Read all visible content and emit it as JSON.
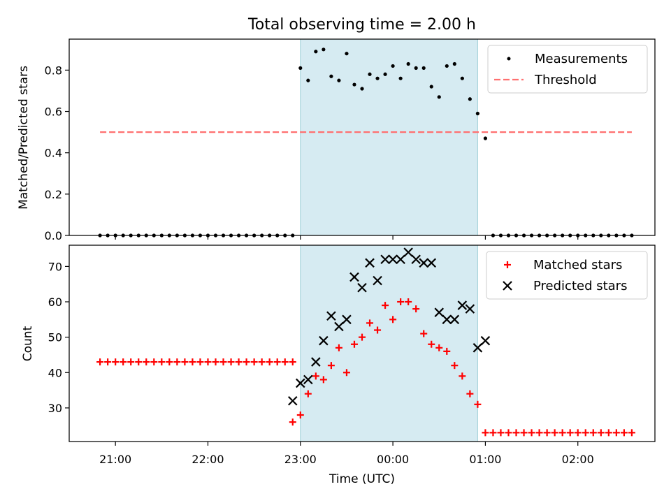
{
  "figure_title": "Total observing time = 2.00 h",
  "x_axis": {
    "label": "Time (UTC)",
    "ticks": [
      "21:00",
      "22:00",
      "23:00",
      "00:00",
      "01:00",
      "02:00"
    ],
    "range": [
      "20:30",
      "02:50"
    ]
  },
  "observing_window": {
    "start": "23:00",
    "end": "00:55",
    "color": "#add8e6"
  },
  "chart_data": [
    {
      "type": "scatter",
      "ylabel": "Matched/Predicted stars",
      "ylim": [
        0,
        0.95
      ],
      "yticks": [
        "0.0",
        "0.2",
        "0.4",
        "0.6",
        "0.8"
      ],
      "legend_position": "top-right",
      "series": [
        {
          "name": "Measurements",
          "marker": "dot",
          "color": "#000000",
          "x": [
            "20:50",
            "20:55",
            "21:00",
            "21:05",
            "21:10",
            "21:15",
            "21:20",
            "21:25",
            "21:30",
            "21:35",
            "21:40",
            "21:45",
            "21:50",
            "21:55",
            "22:00",
            "22:05",
            "22:10",
            "22:15",
            "22:20",
            "22:25",
            "22:30",
            "22:35",
            "22:40",
            "22:45",
            "22:50",
            "22:55",
            "23:00",
            "23:05",
            "23:10",
            "23:15",
            "23:20",
            "23:25",
            "23:30",
            "23:35",
            "23:40",
            "23:45",
            "23:50",
            "23:55",
            "00:00",
            "00:05",
            "00:10",
            "00:15",
            "00:20",
            "00:25",
            "00:30",
            "00:35",
            "00:40",
            "00:45",
            "00:50",
            "00:55",
            "01:00",
            "01:05",
            "01:10",
            "01:15",
            "01:20",
            "01:25",
            "01:30",
            "01:35",
            "01:40",
            "01:45",
            "01:50",
            "01:55",
            "02:00",
            "02:05",
            "02:10",
            "02:15",
            "02:20",
            "02:25",
            "02:30",
            "02:35"
          ],
          "y": [
            0,
            0,
            0,
            0,
            0,
            0,
            0,
            0,
            0,
            0,
            0,
            0,
            0,
            0,
            0,
            0,
            0,
            0,
            0,
            0,
            0,
            0,
            0,
            0,
            0,
            0,
            0.81,
            0.75,
            0.89,
            0.9,
            0.77,
            0.75,
            0.88,
            0.73,
            0.71,
            0.78,
            0.76,
            0.78,
            0.82,
            0.76,
            0.83,
            0.81,
            0.81,
            0.72,
            0.67,
            0.82,
            0.83,
            0.76,
            0.66,
            0.59,
            0.47,
            0,
            0,
            0,
            0,
            0,
            0,
            0,
            0,
            0,
            0,
            0,
            0,
            0,
            0,
            0,
            0,
            0,
            0,
            0
          ]
        },
        {
          "name": "Threshold",
          "marker": "dashed-line",
          "color": "#ff7070",
          "x": [
            "20:50",
            "02:35"
          ],
          "y": [
            0.5,
            0.5
          ]
        }
      ]
    },
    {
      "type": "scatter",
      "xlabel": "Time (UTC)",
      "ylabel": "Count",
      "ylim": [
        20.5,
        76
      ],
      "yticks": [
        "30",
        "40",
        "50",
        "60",
        "70"
      ],
      "legend_position": "top-right",
      "series": [
        {
          "name": "Matched stars",
          "marker": "plus",
          "color": "#ff0000",
          "x": [
            "20:50",
            "20:55",
            "21:00",
            "21:05",
            "21:10",
            "21:15",
            "21:20",
            "21:25",
            "21:30",
            "21:35",
            "21:40",
            "21:45",
            "21:50",
            "21:55",
            "22:00",
            "22:05",
            "22:10",
            "22:15",
            "22:20",
            "22:25",
            "22:30",
            "22:35",
            "22:40",
            "22:45",
            "22:50",
            "22:55",
            "22:55",
            "23:00",
            "23:05",
            "23:10",
            "23:15",
            "23:20",
            "23:25",
            "23:30",
            "23:35",
            "23:40",
            "23:45",
            "23:50",
            "23:55",
            "00:00",
            "00:05",
            "00:10",
            "00:15",
            "00:20",
            "00:25",
            "00:30",
            "00:35",
            "00:40",
            "00:45",
            "00:50",
            "00:55",
            "01:00",
            "01:05",
            "01:10",
            "01:15",
            "01:20",
            "01:25",
            "01:30",
            "01:35",
            "01:40",
            "01:45",
            "01:50",
            "01:55",
            "02:00",
            "02:05",
            "02:10",
            "02:15",
            "02:20",
            "02:25",
            "02:30",
            "02:35"
          ],
          "y": [
            43,
            43,
            43,
            43,
            43,
            43,
            43,
            43,
            43,
            43,
            43,
            43,
            43,
            43,
            43,
            43,
            43,
            43,
            43,
            43,
            43,
            43,
            43,
            43,
            43,
            43,
            26,
            28,
            34,
            39,
            38,
            42,
            47,
            40,
            48,
            50,
            54,
            52,
            59,
            55,
            60,
            60,
            58,
            51,
            48,
            47,
            46,
            42,
            39,
            34,
            31,
            23,
            23,
            23,
            23,
            23,
            23,
            23,
            23,
            23,
            23,
            23,
            23,
            23,
            23,
            23,
            23,
            23,
            23,
            23,
            23
          ]
        },
        {
          "name": "Predicted stars",
          "marker": "x",
          "color": "#000000",
          "x": [
            "22:55",
            "23:00",
            "23:05",
            "23:10",
            "23:15",
            "23:20",
            "23:25",
            "23:30",
            "23:35",
            "23:40",
            "23:45",
            "23:50",
            "23:55",
            "00:00",
            "00:05",
            "00:10",
            "00:15",
            "00:20",
            "00:25",
            "00:30",
            "00:35",
            "00:40",
            "00:45",
            "00:50",
            "00:55",
            "01:00"
          ],
          "y": [
            32,
            37,
            38,
            43,
            49,
            56,
            53,
            55,
            67,
            64,
            71,
            66,
            72,
            72,
            72,
            74,
            72,
            71,
            71,
            57,
            55,
            55,
            59,
            58,
            47,
            49
          ]
        }
      ]
    }
  ]
}
